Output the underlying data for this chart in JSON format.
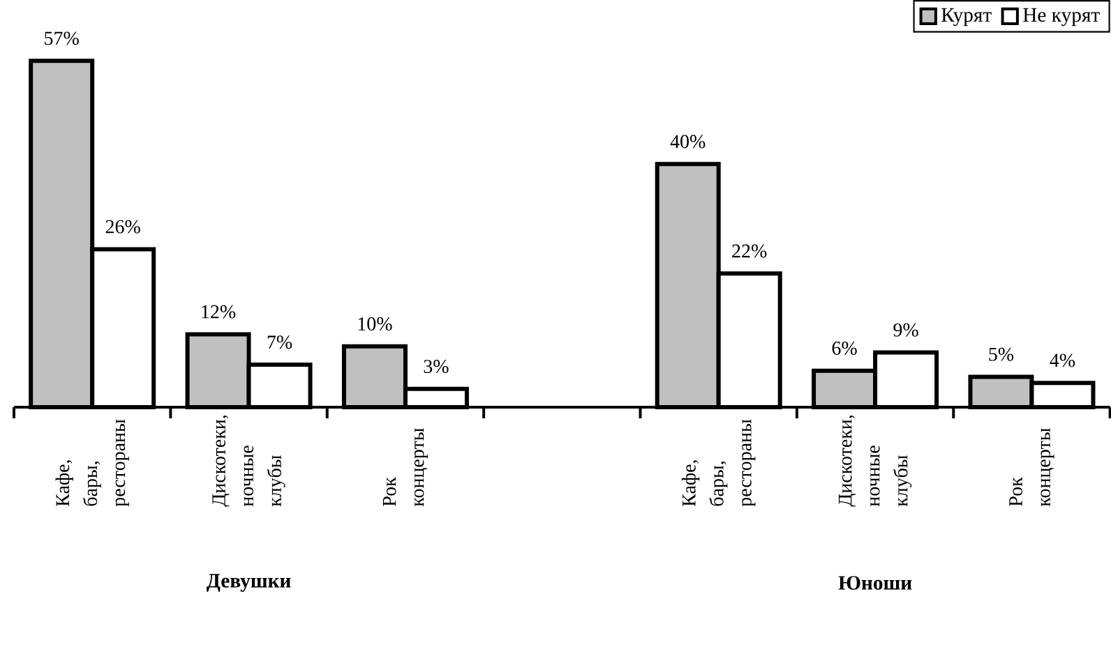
{
  "chart_data": {
    "type": "bar",
    "categories": [
      "Кафе, бары, рестораны",
      "Дискотеки, ночные клубы",
      "Рок концерты",
      null,
      "Кафе, бары, рестораны",
      "Дискотеки, ночные клубы",
      "Рок концерты"
    ],
    "series": [
      {
        "name": "Курят",
        "color": "#c0c0c0",
        "values": [
          57,
          12,
          10,
          null,
          40,
          6,
          5
        ],
        "value_labels": [
          "57%",
          "12%",
          "10%",
          null,
          "40%",
          "6%",
          "5%"
        ]
      },
      {
        "name": "Не курят",
        "color": "#ffffff",
        "values": [
          26,
          7,
          3,
          null,
          22,
          9,
          4
        ],
        "value_labels": [
          "26%",
          "7%",
          "3%",
          null,
          "22%",
          "9%",
          "4%"
        ]
      }
    ],
    "annotations": [
      "Девушки",
      "Юноши"
    ],
    "legend": "top right",
    "ylim": [
      0,
      67
    ],
    "tick_labels": "x"
  }
}
